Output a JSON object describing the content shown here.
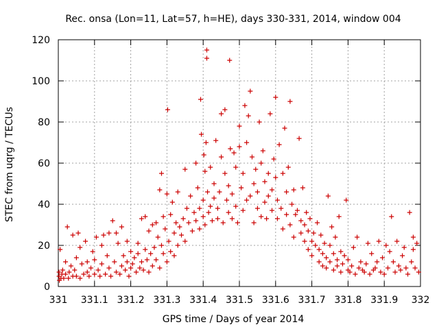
{
  "chart_data": {
    "type": "scatter",
    "title": "Rec. onsa (Lon=11, Lat=57, h=HE), days 330-331, 2014, window 004",
    "xlabel": "GPS time / Days of year 2014",
    "ylabel": "STEC from uqrg / TECUs",
    "xlim": [
      331,
      332
    ],
    "ylim": [
      0,
      120
    ],
    "xticks": [
      331,
      331.1,
      331.2,
      331.3,
      331.4,
      331.5,
      331.6,
      331.7,
      331.8,
      331.9,
      332
    ],
    "xtick_labels": [
      "331",
      "331.1",
      "331.2",
      "331.3",
      "331.4",
      "331.5",
      "331.6",
      "331.7",
      "331.8",
      "331.9",
      "332"
    ],
    "yticks": [
      0,
      20,
      40,
      60,
      80,
      100,
      120
    ],
    "ytick_labels": [
      "0",
      "20",
      "40",
      "60",
      "80",
      "100",
      "120"
    ],
    "grid": true,
    "marker": "+",
    "color": "#cc0000",
    "points": [
      [
        331.002,
        7
      ],
      [
        331.002,
        5
      ],
      [
        331.003,
        3
      ],
      [
        331.005,
        18
      ],
      [
        331.007,
        4
      ],
      [
        331.01,
        6
      ],
      [
        331.012,
        8
      ],
      [
        331.015,
        4
      ],
      [
        331.02,
        12
      ],
      [
        331.02,
        6
      ],
      [
        331.025,
        29
      ],
      [
        331.028,
        4
      ],
      [
        331.03,
        7
      ],
      [
        331.035,
        10
      ],
      [
        331.04,
        25
      ],
      [
        331.04,
        5
      ],
      [
        331.045,
        8
      ],
      [
        331.05,
        14
      ],
      [
        331.05,
        5
      ],
      [
        331.055,
        26
      ],
      [
        331.06,
        4
      ],
      [
        331.06,
        19
      ],
      [
        331.065,
        11
      ],
      [
        331.07,
        6
      ],
      [
        331.075,
        22
      ],
      [
        331.08,
        7
      ],
      [
        331.08,
        12
      ],
      [
        331.085,
        5
      ],
      [
        331.09,
        9
      ],
      [
        331.095,
        17
      ],
      [
        331.1,
        6
      ],
      [
        331.1,
        13
      ],
      [
        331.105,
        24
      ],
      [
        331.11,
        8
      ],
      [
        331.115,
        5
      ],
      [
        331.12,
        20
      ],
      [
        331.12,
        11
      ],
      [
        331.125,
        25
      ],
      [
        331.13,
        6
      ],
      [
        331.135,
        15
      ],
      [
        331.14,
        9
      ],
      [
        331.14,
        26
      ],
      [
        331.145,
        5
      ],
      [
        331.15,
        32
      ],
      [
        331.155,
        12
      ],
      [
        331.16,
        7
      ],
      [
        331.16,
        26
      ],
      [
        331.165,
        21
      ],
      [
        331.17,
        6
      ],
      [
        331.175,
        10
      ],
      [
        331.175,
        29
      ],
      [
        331.18,
        15
      ],
      [
        331.185,
        8
      ],
      [
        331.19,
        12
      ],
      [
        331.19,
        22
      ],
      [
        331.195,
        5
      ],
      [
        331.2,
        17
      ],
      [
        331.2,
        9
      ],
      [
        331.205,
        11
      ],
      [
        331.21,
        14
      ],
      [
        331.215,
        7
      ],
      [
        331.22,
        21
      ],
      [
        331.22,
        16
      ],
      [
        331.225,
        9
      ],
      [
        331.23,
        33
      ],
      [
        331.23,
        12
      ],
      [
        331.235,
        8
      ],
      [
        331.24,
        34
      ],
      [
        331.24,
        18
      ],
      [
        331.245,
        13
      ],
      [
        331.25,
        7
      ],
      [
        331.25,
        27
      ],
      [
        331.255,
        16
      ],
      [
        331.26,
        10
      ],
      [
        331.26,
        30
      ],
      [
        331.265,
        19
      ],
      [
        331.27,
        13
      ],
      [
        331.27,
        31
      ],
      [
        331.275,
        24
      ],
      [
        331.28,
        9
      ],
      [
        331.28,
        47
      ],
      [
        331.285,
        55
      ],
      [
        331.285,
        20
      ],
      [
        331.29,
        16
      ],
      [
        331.29,
        34
      ],
      [
        331.295,
        28
      ],
      [
        331.3,
        12
      ],
      [
        331.3,
        45
      ],
      [
        331.302,
        86
      ],
      [
        331.305,
        22
      ],
      [
        331.31,
        17
      ],
      [
        331.31,
        35
      ],
      [
        331.315,
        41
      ],
      [
        331.32,
        26
      ],
      [
        331.32,
        15
      ],
      [
        331.325,
        31
      ],
      [
        331.33,
        46
      ],
      [
        331.33,
        20
      ],
      [
        331.335,
        29
      ],
      [
        331.34,
        25
      ],
      [
        331.345,
        33
      ],
      [
        331.35,
        57
      ],
      [
        331.35,
        22
      ],
      [
        331.355,
        38
      ],
      [
        331.36,
        31
      ],
      [
        331.365,
        44
      ],
      [
        331.37,
        27
      ],
      [
        331.375,
        36
      ],
      [
        331.38,
        60
      ],
      [
        331.38,
        32
      ],
      [
        331.385,
        48
      ],
      [
        331.39,
        28
      ],
      [
        331.39,
        38
      ],
      [
        331.393,
        91
      ],
      [
        331.395,
        74
      ],
      [
        331.4,
        34
      ],
      [
        331.4,
        42
      ],
      [
        331.402,
        64
      ],
      [
        331.405,
        30
      ],
      [
        331.405,
        56
      ],
      [
        331.408,
        70
      ],
      [
        331.41,
        115
      ],
      [
        331.41,
        111
      ],
      [
        331.412,
        46
      ],
      [
        331.415,
        36
      ],
      [
        331.42,
        39
      ],
      [
        331.42,
        58
      ],
      [
        331.425,
        32
      ],
      [
        331.43,
        50
      ],
      [
        331.43,
        43
      ],
      [
        331.435,
        71
      ],
      [
        331.44,
        33
      ],
      [
        331.44,
        38
      ],
      [
        331.445,
        46
      ],
      [
        331.45,
        84
      ],
      [
        331.45,
        63
      ],
      [
        331.455,
        31
      ],
      [
        331.46,
        86
      ],
      [
        331.46,
        55
      ],
      [
        331.465,
        42
      ],
      [
        331.47,
        36
      ],
      [
        331.47,
        49
      ],
      [
        331.473,
        110
      ],
      [
        331.475,
        67
      ],
      [
        331.48,
        33
      ],
      [
        331.48,
        45
      ],
      [
        331.485,
        65
      ],
      [
        331.49,
        58
      ],
      [
        331.49,
        39
      ],
      [
        331.495,
        31
      ],
      [
        331.5,
        68
      ],
      [
        331.5,
        78
      ],
      [
        331.505,
        48
      ],
      [
        331.51,
        37
      ],
      [
        331.51,
        55
      ],
      [
        331.515,
        88
      ],
      [
        331.52,
        70
      ],
      [
        331.52,
        42
      ],
      [
        331.525,
        83
      ],
      [
        331.53,
        95
      ],
      [
        331.53,
        44
      ],
      [
        331.535,
        63
      ],
      [
        331.54,
        31
      ],
      [
        331.54,
        50
      ],
      [
        331.545,
        57
      ],
      [
        331.55,
        46
      ],
      [
        331.55,
        38
      ],
      [
        331.555,
        80
      ],
      [
        331.56,
        60
      ],
      [
        331.56,
        34
      ],
      [
        331.565,
        66
      ],
      [
        331.57,
        51
      ],
      [
        331.57,
        41
      ],
      [
        331.575,
        33
      ],
      [
        331.58,
        44
      ],
      [
        331.58,
        55
      ],
      [
        331.585,
        84
      ],
      [
        331.59,
        37
      ],
      [
        331.59,
        47
      ],
      [
        331.595,
        62
      ],
      [
        331.6,
        92
      ],
      [
        331.6,
        53
      ],
      [
        331.605,
        33
      ],
      [
        331.605,
        42
      ],
      [
        331.61,
        69
      ],
      [
        331.615,
        38
      ],
      [
        331.62,
        28
      ],
      [
        331.62,
        55
      ],
      [
        331.625,
        77
      ],
      [
        331.63,
        46
      ],
      [
        331.63,
        35
      ],
      [
        331.635,
        58
      ],
      [
        331.64,
        90
      ],
      [
        331.64,
        30
      ],
      [
        331.645,
        40
      ],
      [
        331.65,
        47
      ],
      [
        331.65,
        24
      ],
      [
        331.655,
        35
      ],
      [
        331.66,
        37
      ],
      [
        331.665,
        72
      ],
      [
        331.67,
        26
      ],
      [
        331.67,
        32
      ],
      [
        331.675,
        48
      ],
      [
        331.68,
        22
      ],
      [
        331.68,
        30
      ],
      [
        331.685,
        36
      ],
      [
        331.69,
        18
      ],
      [
        331.69,
        27
      ],
      [
        331.695,
        33
      ],
      [
        331.7,
        15
      ],
      [
        331.7,
        22
      ],
      [
        331.705,
        26
      ],
      [
        331.71,
        20
      ],
      [
        331.715,
        31
      ],
      [
        331.72,
        12
      ],
      [
        331.72,
        18
      ],
      [
        331.725,
        25
      ],
      [
        331.73,
        10
      ],
      [
        331.73,
        16
      ],
      [
        331.735,
        21
      ],
      [
        331.74,
        9
      ],
      [
        331.74,
        14
      ],
      [
        331.745,
        44
      ],
      [
        331.75,
        12
      ],
      [
        331.75,
        20
      ],
      [
        331.755,
        29
      ],
      [
        331.76,
        8
      ],
      [
        331.76,
        16
      ],
      [
        331.765,
        24
      ],
      [
        331.77,
        10
      ],
      [
        331.77,
        13
      ],
      [
        331.775,
        34
      ],
      [
        331.78,
        7
      ],
      [
        331.78,
        17
      ],
      [
        331.785,
        11
      ],
      [
        331.79,
        15
      ],
      [
        331.795,
        42
      ],
      [
        331.8,
        8
      ],
      [
        331.8,
        13
      ],
      [
        331.805,
        7
      ],
      [
        331.81,
        10
      ],
      [
        331.815,
        19
      ],
      [
        331.82,
        6
      ],
      [
        331.825,
        24
      ],
      [
        331.83,
        9
      ],
      [
        331.835,
        12
      ],
      [
        331.84,
        8
      ],
      [
        331.845,
        7
      ],
      [
        331.85,
        11
      ],
      [
        331.855,
        21
      ],
      [
        331.86,
        6
      ],
      [
        331.865,
        16
      ],
      [
        331.87,
        8
      ],
      [
        331.875,
        9
      ],
      [
        331.88,
        12
      ],
      [
        331.885,
        22
      ],
      [
        331.89,
        7
      ],
      [
        331.895,
        14
      ],
      [
        331.9,
        6
      ],
      [
        331.905,
        20
      ],
      [
        331.91,
        9
      ],
      [
        331.915,
        17
      ],
      [
        331.92,
        34
      ],
      [
        331.925,
        12
      ],
      [
        331.93,
        7
      ],
      [
        331.935,
        22
      ],
      [
        331.94,
        10
      ],
      [
        331.945,
        8
      ],
      [
        331.95,
        15
      ],
      [
        331.955,
        19
      ],
      [
        331.96,
        9
      ],
      [
        331.965,
        6
      ],
      [
        331.97,
        36
      ],
      [
        331.975,
        12
      ],
      [
        331.98,
        24
      ],
      [
        331.98,
        18
      ],
      [
        331.985,
        9
      ],
      [
        331.99,
        21
      ],
      [
        331.995,
        7
      ]
    ]
  }
}
